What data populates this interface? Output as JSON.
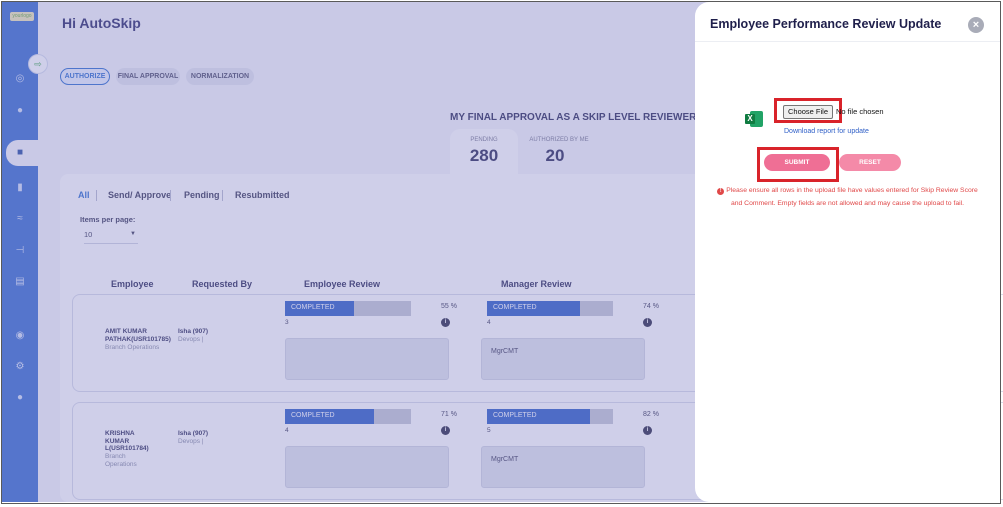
{
  "app": {
    "logo_text": "yourlogo",
    "greeting": "Hi AutoSkip"
  },
  "tabs": [
    "AUTHORIZE",
    "FINAL APPROVAL",
    "NORMALIZATION"
  ],
  "approval": {
    "title": "MY FINAL APPROVAL AS A SKIP LEVEL REVIEWER",
    "pending_label": "PENDING",
    "pending_value": "280",
    "authorized_label": "AUTHORIZED BY ME",
    "authorized_value": "20"
  },
  "filters": [
    "All",
    "Send/ Approve",
    "Pending",
    "Resubmitted"
  ],
  "pagination": {
    "label": "Items per page:",
    "value": "10"
  },
  "columns": [
    "Employee",
    "Requested By",
    "Employee Review",
    "Manager Review"
  ],
  "rows": [
    {
      "employee_name": "AMIT KUMAR PATHAK(USR101785)",
      "employee_dept": "Branch Operations",
      "requested_by": "Isha (907)",
      "requested_dept": "Devops |",
      "emp_review_status": "COMPLETED",
      "emp_review_progress": 55,
      "emp_review_pct": "55  %",
      "emp_review_count": "3",
      "emp_comment": "",
      "mgr_review_status": "COMPLETED",
      "mgr_review_progress": 74,
      "mgr_review_pct": "74  %",
      "mgr_review_count": "4",
      "mgr_comment": "MgrCMT"
    },
    {
      "employee_name": "KRISHNA KUMAR L(USR101784)",
      "employee_dept": "Branch Operations",
      "requested_by": "Isha (907)",
      "requested_dept": "Devops |",
      "emp_review_status": "COMPLETED",
      "emp_review_progress": 71,
      "emp_review_pct": "71  %",
      "emp_review_count": "4",
      "emp_comment": "",
      "mgr_review_status": "COMPLETED",
      "mgr_review_progress": 82,
      "mgr_review_pct": "82  %",
      "mgr_review_count": "5",
      "mgr_comment": "MgrCMT"
    }
  ],
  "modal": {
    "title": "Employee Performance Review Update",
    "close_symbol": "×",
    "choose_file_label": "Choose File",
    "no_file_text": "No file chosen",
    "download_link": "Download report for update",
    "submit_label": "SUBMIT",
    "reset_label": "RESET",
    "warning": "Please ensure all rows in the upload file have values entered for Skip Review Score and Comment. Empty fields are not allowed and may cause the upload to fail."
  },
  "colors": {
    "sidebar": "#3b6fd1",
    "bar_fill": "#2f5fc7",
    "submit": "#ef6f95",
    "reset": "#f48aa8",
    "warning": "#e04848",
    "highlight": "#d9232a"
  },
  "icons": {
    "sidebar": [
      "globe-icon",
      "team-icon",
      "review-icon",
      "book-icon",
      "chart-icon",
      "hierarchy-icon",
      "form-icon",
      "eye-icon",
      "gear-icon",
      "user-icon"
    ],
    "file": "excel-icon"
  }
}
